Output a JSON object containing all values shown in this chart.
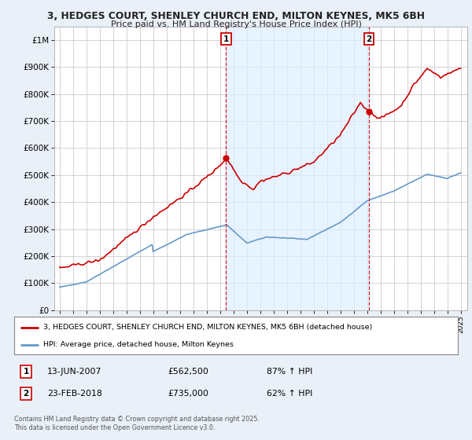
{
  "title_line1": "3, HEDGES COURT, SHENLEY CHURCH END, MILTON KEYNES, MK5 6BH",
  "title_line2": "Price paid vs. HM Land Registry's House Price Index (HPI)",
  "legend_line1": "3, HEDGES COURT, SHENLEY CHURCH END, MILTON KEYNES, MK5 6BH (detached house)",
  "legend_line2": "HPI: Average price, detached house, Milton Keynes",
  "property_color": "#cc0000",
  "hpi_color": "#6699cc",
  "shade_color": "#ddeeff",
  "marker1_x": 2007.46,
  "marker1_value": 562500,
  "marker2_x": 2018.15,
  "marker2_value": 735000,
  "footer": "Contains HM Land Registry data © Crown copyright and database right 2025.\nThis data is licensed under the Open Government Licence v3.0.",
  "ylim": [
    0,
    1050000
  ],
  "yticks": [
    0,
    100000,
    200000,
    300000,
    400000,
    500000,
    600000,
    700000,
    800000,
    900000,
    1000000
  ],
  "ytick_labels": [
    "£0",
    "£100K",
    "£200K",
    "£300K",
    "£400K",
    "£500K",
    "£600K",
    "£700K",
    "£800K",
    "£900K",
    "£1M"
  ],
  "background_color": "#eaf0f8",
  "plot_bg_color": "#ffffff",
  "grid_color": "#cccccc"
}
